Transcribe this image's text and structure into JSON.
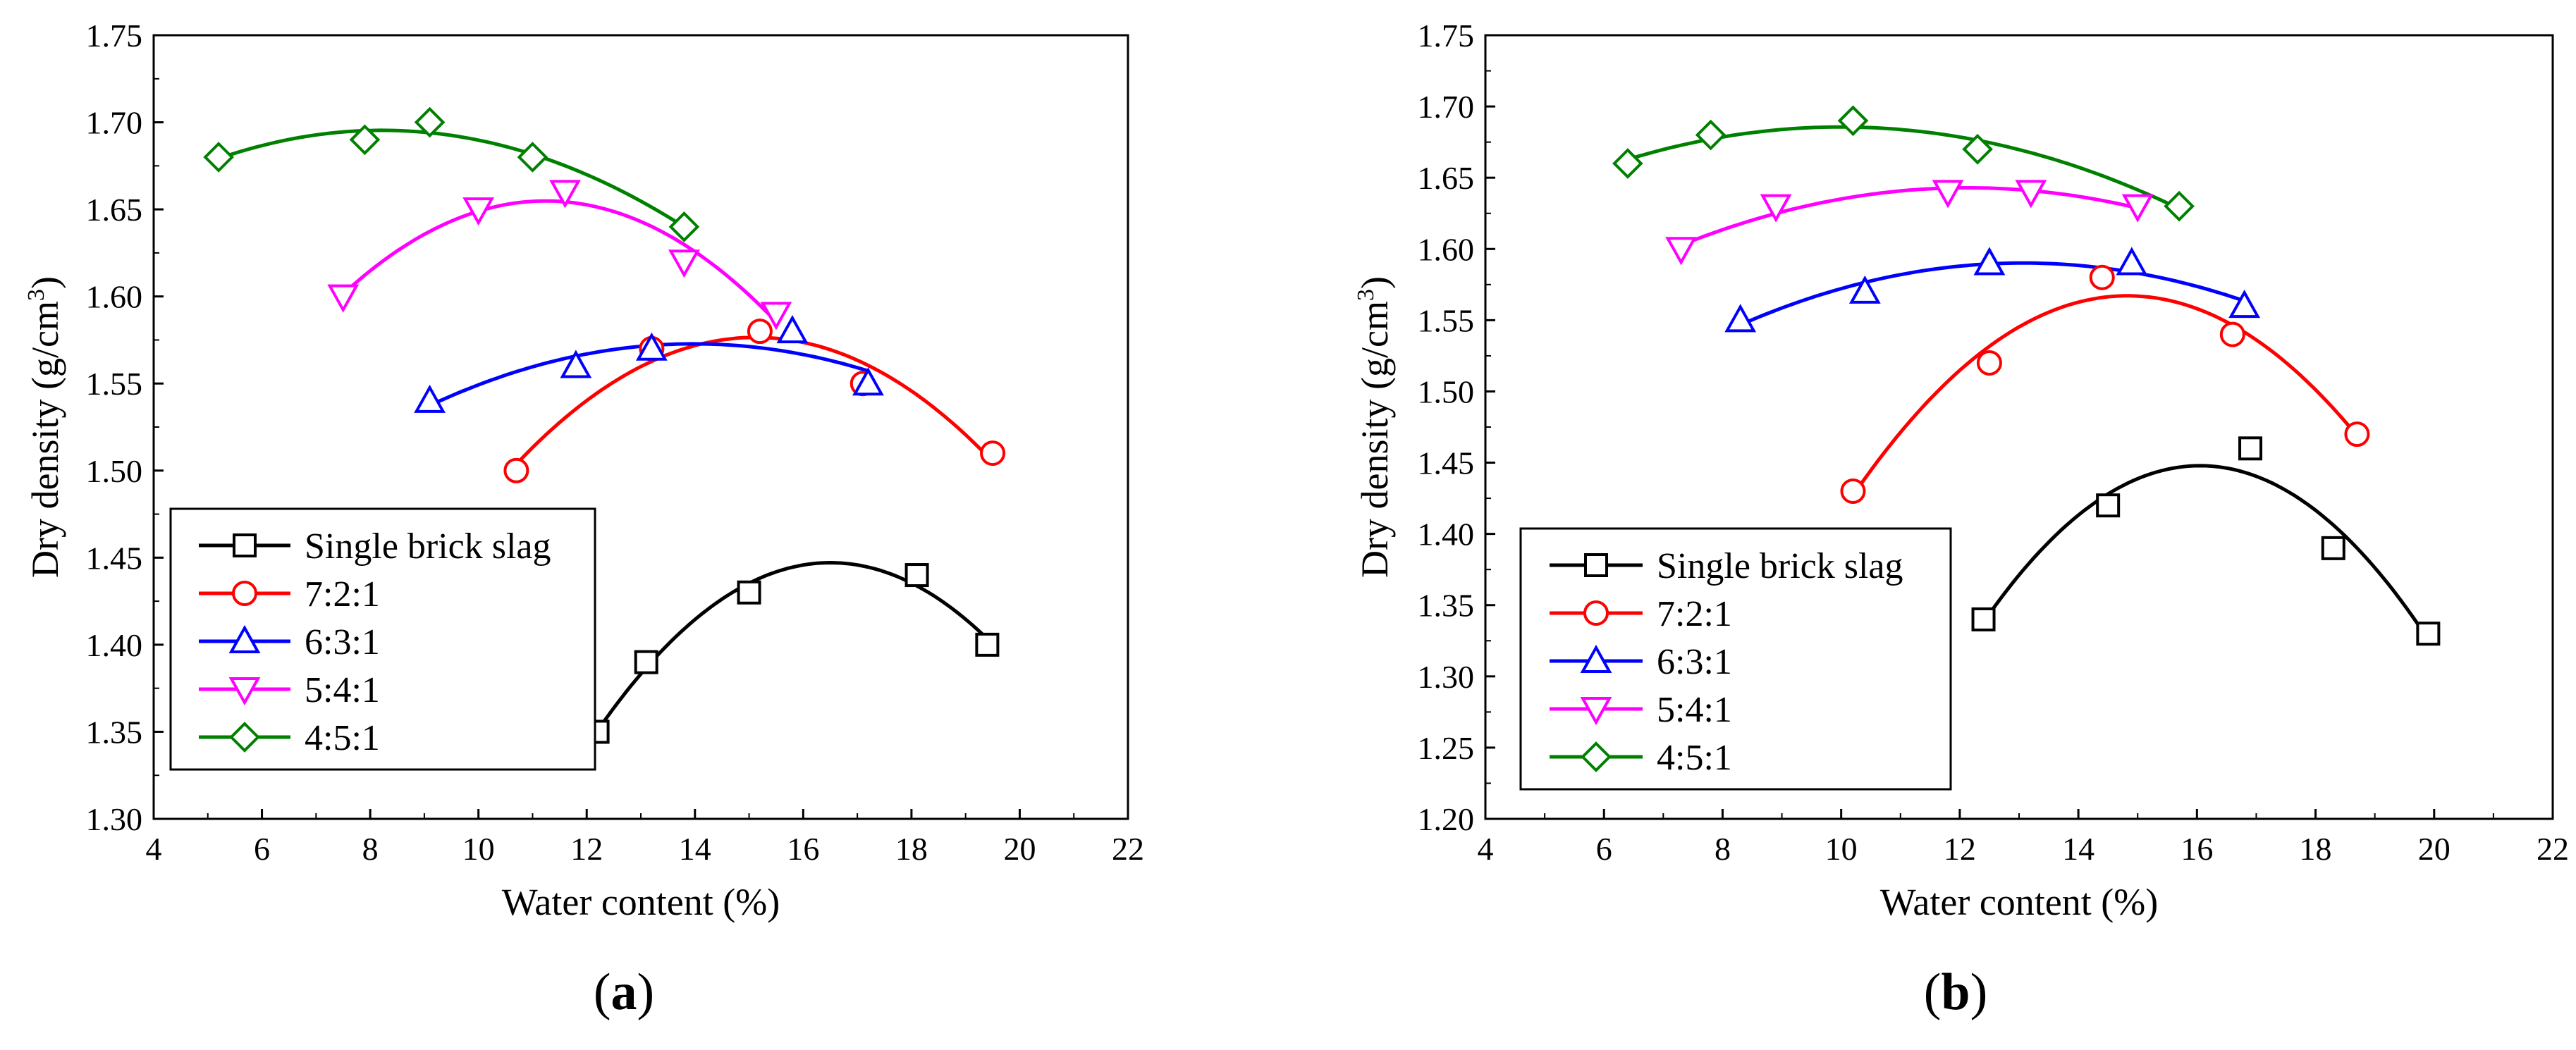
{
  "chart_data": [
    {
      "type": "line",
      "panel_label": "(a)",
      "panel_letter": "a",
      "xlabel": "Water content (%)",
      "ylabel_main": "Dry density (g/cm",
      "ylabel_sup": "3",
      "ylabel_close": ")",
      "xlim": [
        4,
        22
      ],
      "ylim": [
        1.3,
        1.75
      ],
      "x_ticks": [
        "4",
        "6",
        "8",
        "10",
        "12",
        "14",
        "16",
        "18",
        "20",
        "22"
      ],
      "y_ticks": [
        "1.30",
        "1.35",
        "1.40",
        "1.45",
        "1.50",
        "1.55",
        "1.60",
        "1.65",
        "1.70",
        "1.75"
      ],
      "legend_position": "bottom-left",
      "series": [
        {
          "name": "Single brick slag",
          "color": "#000000",
          "marker": "square",
          "x": [
            12.2,
            13.1,
            15.0,
            18.1,
            19.4
          ],
          "y": [
            1.35,
            1.39,
            1.43,
            1.44,
            1.4
          ]
        },
        {
          "name": "7:2:1",
          "color": "#ff0000",
          "marker": "circle",
          "x": [
            10.7,
            13.2,
            15.2,
            17.1,
            19.5
          ],
          "y": [
            1.5,
            1.57,
            1.58,
            1.55,
            1.51
          ]
        },
        {
          "name": "6:3:1",
          "color": "#0000ff",
          "marker": "triangle-up",
          "x": [
            9.1,
            11.8,
            13.2,
            15.8,
            17.2
          ],
          "y": [
            1.54,
            1.56,
            1.57,
            1.58,
            1.55
          ]
        },
        {
          "name": "5:4:1",
          "color": "#ff00ff",
          "marker": "triangle-down",
          "x": [
            7.5,
            10.0,
            11.6,
            13.8,
            15.5
          ],
          "y": [
            1.6,
            1.65,
            1.66,
            1.62,
            1.59
          ]
        },
        {
          "name": "4:5:1",
          "color": "#008000",
          "marker": "diamond",
          "x": [
            5.2,
            7.9,
            9.1,
            11.0,
            13.8
          ],
          "y": [
            1.68,
            1.69,
            1.7,
            1.68,
            1.64
          ]
        }
      ]
    },
    {
      "type": "line",
      "panel_label": "(b)",
      "panel_letter": "b",
      "xlabel": "Water content (%)",
      "ylabel_main": "Dry density (g/cm",
      "ylabel_sup": "3",
      "ylabel_close": ")",
      "xlim": [
        4,
        22
      ],
      "ylim": [
        1.2,
        1.75
      ],
      "x_ticks": [
        "4",
        "6",
        "8",
        "10",
        "12",
        "14",
        "16",
        "18",
        "20",
        "22"
      ],
      "y_ticks": [
        "1.20",
        "1.25",
        "1.30",
        "1.35",
        "1.40",
        "1.45",
        "1.50",
        "1.55",
        "1.60",
        "1.65",
        "1.70",
        "1.75"
      ],
      "legend_position": "bottom-left",
      "series": [
        {
          "name": "Single brick slag",
          "color": "#000000",
          "marker": "square",
          "x": [
            12.4,
            14.5,
            16.9,
            18.3,
            19.9
          ],
          "y": [
            1.34,
            1.42,
            1.46,
            1.39,
            1.33
          ]
        },
        {
          "name": "7:2:1",
          "color": "#ff0000",
          "marker": "circle",
          "x": [
            10.2,
            12.5,
            14.4,
            16.6,
            18.7
          ],
          "y": [
            1.43,
            1.52,
            1.58,
            1.54,
            1.47
          ]
        },
        {
          "name": "6:3:1",
          "color": "#0000ff",
          "marker": "triangle-up",
          "x": [
            8.3,
            10.4,
            12.5,
            14.9,
            16.8
          ],
          "y": [
            1.55,
            1.57,
            1.59,
            1.59,
            1.56
          ]
        },
        {
          "name": "5:4:1",
          "color": "#ff00ff",
          "marker": "triangle-down",
          "x": [
            7.3,
            8.9,
            11.8,
            13.2,
            15.0
          ],
          "y": [
            1.6,
            1.63,
            1.64,
            1.64,
            1.63
          ]
        },
        {
          "name": "4:5:1",
          "color": "#008000",
          "marker": "diamond",
          "x": [
            6.4,
            7.8,
            10.2,
            12.3,
            15.7
          ],
          "y": [
            1.66,
            1.68,
            1.69,
            1.67,
            1.63
          ]
        }
      ]
    }
  ]
}
